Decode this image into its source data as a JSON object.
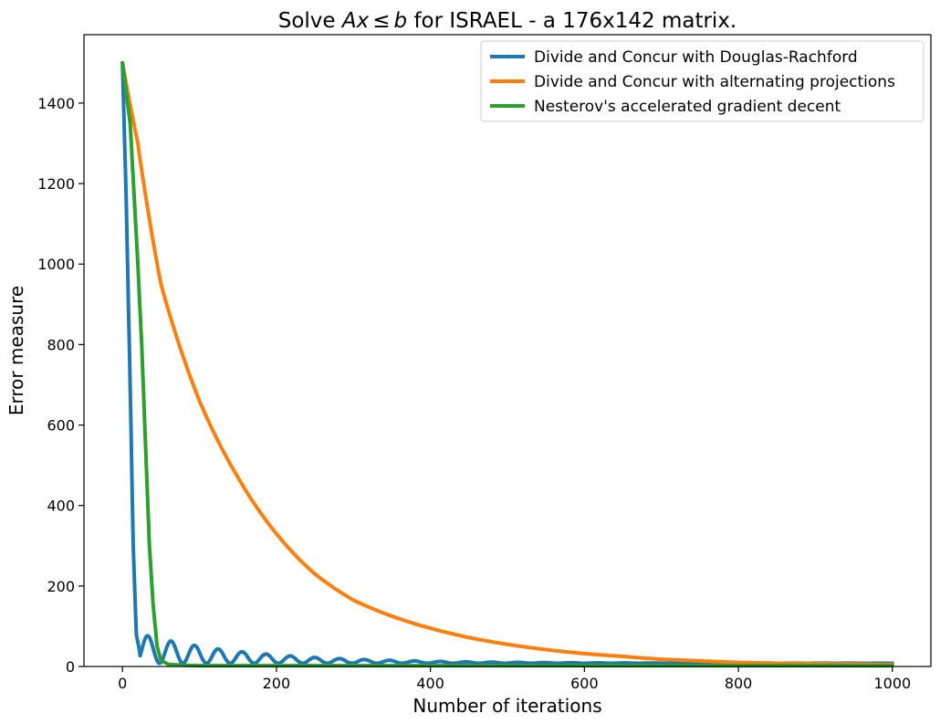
{
  "chart_data": {
    "type": "line",
    "title_prefix": "Solve ",
    "title_math": {
      "A": "A",
      "x": "x",
      "le": "≤",
      "b": "b"
    },
    "title_suffix": " for ISRAEL - a 176x142 matrix.",
    "xlabel": "Number of iterations",
    "ylabel": "Error measure",
    "xlim": [
      -50,
      1050
    ],
    "ylim": [
      0,
      1570
    ],
    "xticks": [
      0,
      200,
      400,
      600,
      800,
      1000
    ],
    "xtick_labels": [
      "0",
      "200",
      "400",
      "600",
      "800",
      "1000"
    ],
    "yticks": [
      0,
      200,
      400,
      600,
      800,
      1000,
      1200,
      1400
    ],
    "ytick_labels": [
      "0",
      "200",
      "400",
      "600",
      "800",
      "1000",
      "1200",
      "1400"
    ],
    "grid": false,
    "legend_position": "top-right",
    "series": [
      {
        "name": "Divide and Concur with Douglas-Rachford",
        "color": "#1f77b4",
        "model": "douglas_rachford",
        "x": [
          0,
          5,
          10,
          14,
          18,
          22,
          27,
          33,
          38,
          44,
          50,
          57,
          64,
          72,
          80,
          90,
          95,
          110,
          125,
          140,
          155,
          170,
          185,
          200,
          215,
          230,
          250,
          280,
          320,
          400,
          500,
          700,
          1000
        ],
        "y": [
          1500,
          1150,
          700,
          300,
          80,
          40,
          65,
          80,
          72,
          40,
          10,
          40,
          52,
          30,
          12,
          42,
          40,
          10,
          35,
          10,
          28,
          8,
          22,
          7,
          18,
          6,
          14,
          10,
          8,
          5,
          3,
          2,
          2
        ]
      },
      {
        "name": "Divide and Concur with alternating projections",
        "color": "#ff7f0e",
        "model": "alternating_projections",
        "x": [
          0,
          20,
          50,
          100,
          150,
          200,
          250,
          300,
          350,
          400,
          450,
          500,
          550,
          600,
          650,
          700,
          750,
          800,
          850,
          900,
          950,
          1000
        ],
        "y": [
          1500,
          1300,
          950,
          660,
          470,
          330,
          230,
          165,
          125,
          95,
          72,
          55,
          42,
          32,
          25,
          18,
          14,
          10,
          8,
          7,
          6,
          5
        ]
      },
      {
        "name": "Nesterov's accelerated gradient decent",
        "color": "#2ca02c",
        "model": "nesterov",
        "x": [
          0,
          10,
          20,
          25,
          30,
          35,
          40,
          45,
          50,
          60,
          80,
          100,
          200,
          400,
          600,
          800,
          1000
        ],
        "y": [
          1500,
          1350,
          1000,
          800,
          550,
          300,
          150,
          50,
          15,
          5,
          3,
          2,
          2,
          2,
          2,
          2,
          2
        ]
      }
    ]
  }
}
